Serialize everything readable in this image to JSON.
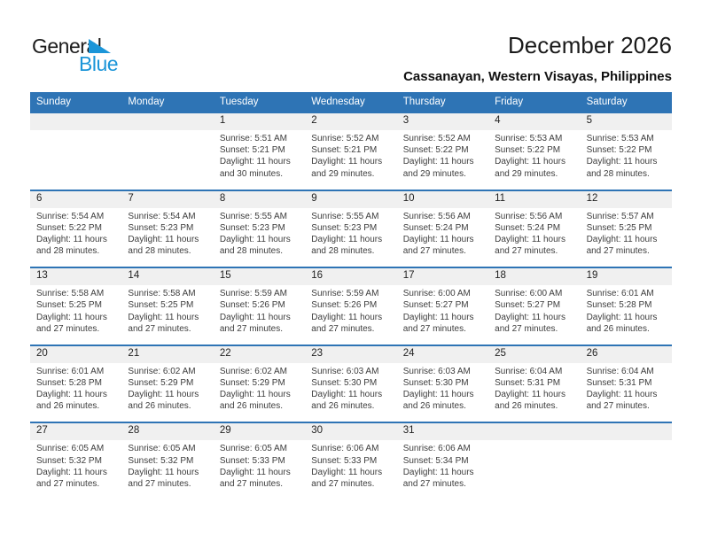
{
  "logo": {
    "text_black": "General",
    "text_blue": "Blue",
    "triangle_icon": "blue-pennant-triangle"
  },
  "header": {
    "title": "December 2026",
    "location": "Cassanayan, Western Visayas, Philippines"
  },
  "colors": {
    "calendar_header_bg": "#2e74b5",
    "week_separator_line": "#2e74b5",
    "day_number_stripe_bg": "#f0f0f0",
    "header_text": "#ffffff",
    "body_text": "#3d3d3d",
    "logo_blue": "#1b95d8",
    "title_text": "#1a1a1a"
  },
  "calendar": {
    "day_names": [
      "Sunday",
      "Monday",
      "Tuesday",
      "Wednesday",
      "Thursday",
      "Friday",
      "Saturday"
    ],
    "labels": {
      "sunrise": "Sunrise:",
      "sunset": "Sunset:",
      "daylight_prefix": "Daylight:"
    },
    "weeks": [
      [
        null,
        null,
        {
          "day": 1,
          "sunrise": "5:51 AM",
          "sunset": "5:21 PM",
          "daylight": "11 hours and 30 minutes."
        },
        {
          "day": 2,
          "sunrise": "5:52 AM",
          "sunset": "5:21 PM",
          "daylight": "11 hours and 29 minutes."
        },
        {
          "day": 3,
          "sunrise": "5:52 AM",
          "sunset": "5:22 PM",
          "daylight": "11 hours and 29 minutes."
        },
        {
          "day": 4,
          "sunrise": "5:53 AM",
          "sunset": "5:22 PM",
          "daylight": "11 hours and 29 minutes."
        },
        {
          "day": 5,
          "sunrise": "5:53 AM",
          "sunset": "5:22 PM",
          "daylight": "11 hours and 28 minutes."
        }
      ],
      [
        {
          "day": 6,
          "sunrise": "5:54 AM",
          "sunset": "5:22 PM",
          "daylight": "11 hours and 28 minutes."
        },
        {
          "day": 7,
          "sunrise": "5:54 AM",
          "sunset": "5:23 PM",
          "daylight": "11 hours and 28 minutes."
        },
        {
          "day": 8,
          "sunrise": "5:55 AM",
          "sunset": "5:23 PM",
          "daylight": "11 hours and 28 minutes."
        },
        {
          "day": 9,
          "sunrise": "5:55 AM",
          "sunset": "5:23 PM",
          "daylight": "11 hours and 28 minutes."
        },
        {
          "day": 10,
          "sunrise": "5:56 AM",
          "sunset": "5:24 PM",
          "daylight": "11 hours and 27 minutes."
        },
        {
          "day": 11,
          "sunrise": "5:56 AM",
          "sunset": "5:24 PM",
          "daylight": "11 hours and 27 minutes."
        },
        {
          "day": 12,
          "sunrise": "5:57 AM",
          "sunset": "5:25 PM",
          "daylight": "11 hours and 27 minutes."
        }
      ],
      [
        {
          "day": 13,
          "sunrise": "5:58 AM",
          "sunset": "5:25 PM",
          "daylight": "11 hours and 27 minutes."
        },
        {
          "day": 14,
          "sunrise": "5:58 AM",
          "sunset": "5:25 PM",
          "daylight": "11 hours and 27 minutes."
        },
        {
          "day": 15,
          "sunrise": "5:59 AM",
          "sunset": "5:26 PM",
          "daylight": "11 hours and 27 minutes."
        },
        {
          "day": 16,
          "sunrise": "5:59 AM",
          "sunset": "5:26 PM",
          "daylight": "11 hours and 27 minutes."
        },
        {
          "day": 17,
          "sunrise": "6:00 AM",
          "sunset": "5:27 PM",
          "daylight": "11 hours and 27 minutes."
        },
        {
          "day": 18,
          "sunrise": "6:00 AM",
          "sunset": "5:27 PM",
          "daylight": "11 hours and 27 minutes."
        },
        {
          "day": 19,
          "sunrise": "6:01 AM",
          "sunset": "5:28 PM",
          "daylight": "11 hours and 26 minutes."
        }
      ],
      [
        {
          "day": 20,
          "sunrise": "6:01 AM",
          "sunset": "5:28 PM",
          "daylight": "11 hours and 26 minutes."
        },
        {
          "day": 21,
          "sunrise": "6:02 AM",
          "sunset": "5:29 PM",
          "daylight": "11 hours and 26 minutes."
        },
        {
          "day": 22,
          "sunrise": "6:02 AM",
          "sunset": "5:29 PM",
          "daylight": "11 hours and 26 minutes."
        },
        {
          "day": 23,
          "sunrise": "6:03 AM",
          "sunset": "5:30 PM",
          "daylight": "11 hours and 26 minutes."
        },
        {
          "day": 24,
          "sunrise": "6:03 AM",
          "sunset": "5:30 PM",
          "daylight": "11 hours and 26 minutes."
        },
        {
          "day": 25,
          "sunrise": "6:04 AM",
          "sunset": "5:31 PM",
          "daylight": "11 hours and 26 minutes."
        },
        {
          "day": 26,
          "sunrise": "6:04 AM",
          "sunset": "5:31 PM",
          "daylight": "11 hours and 27 minutes."
        }
      ],
      [
        {
          "day": 27,
          "sunrise": "6:05 AM",
          "sunset": "5:32 PM",
          "daylight": "11 hours and 27 minutes."
        },
        {
          "day": 28,
          "sunrise": "6:05 AM",
          "sunset": "5:32 PM",
          "daylight": "11 hours and 27 minutes."
        },
        {
          "day": 29,
          "sunrise": "6:05 AM",
          "sunset": "5:33 PM",
          "daylight": "11 hours and 27 minutes."
        },
        {
          "day": 30,
          "sunrise": "6:06 AM",
          "sunset": "5:33 PM",
          "daylight": "11 hours and 27 minutes."
        },
        {
          "day": 31,
          "sunrise": "6:06 AM",
          "sunset": "5:34 PM",
          "daylight": "11 hours and 27 minutes."
        },
        null,
        null
      ]
    ]
  }
}
